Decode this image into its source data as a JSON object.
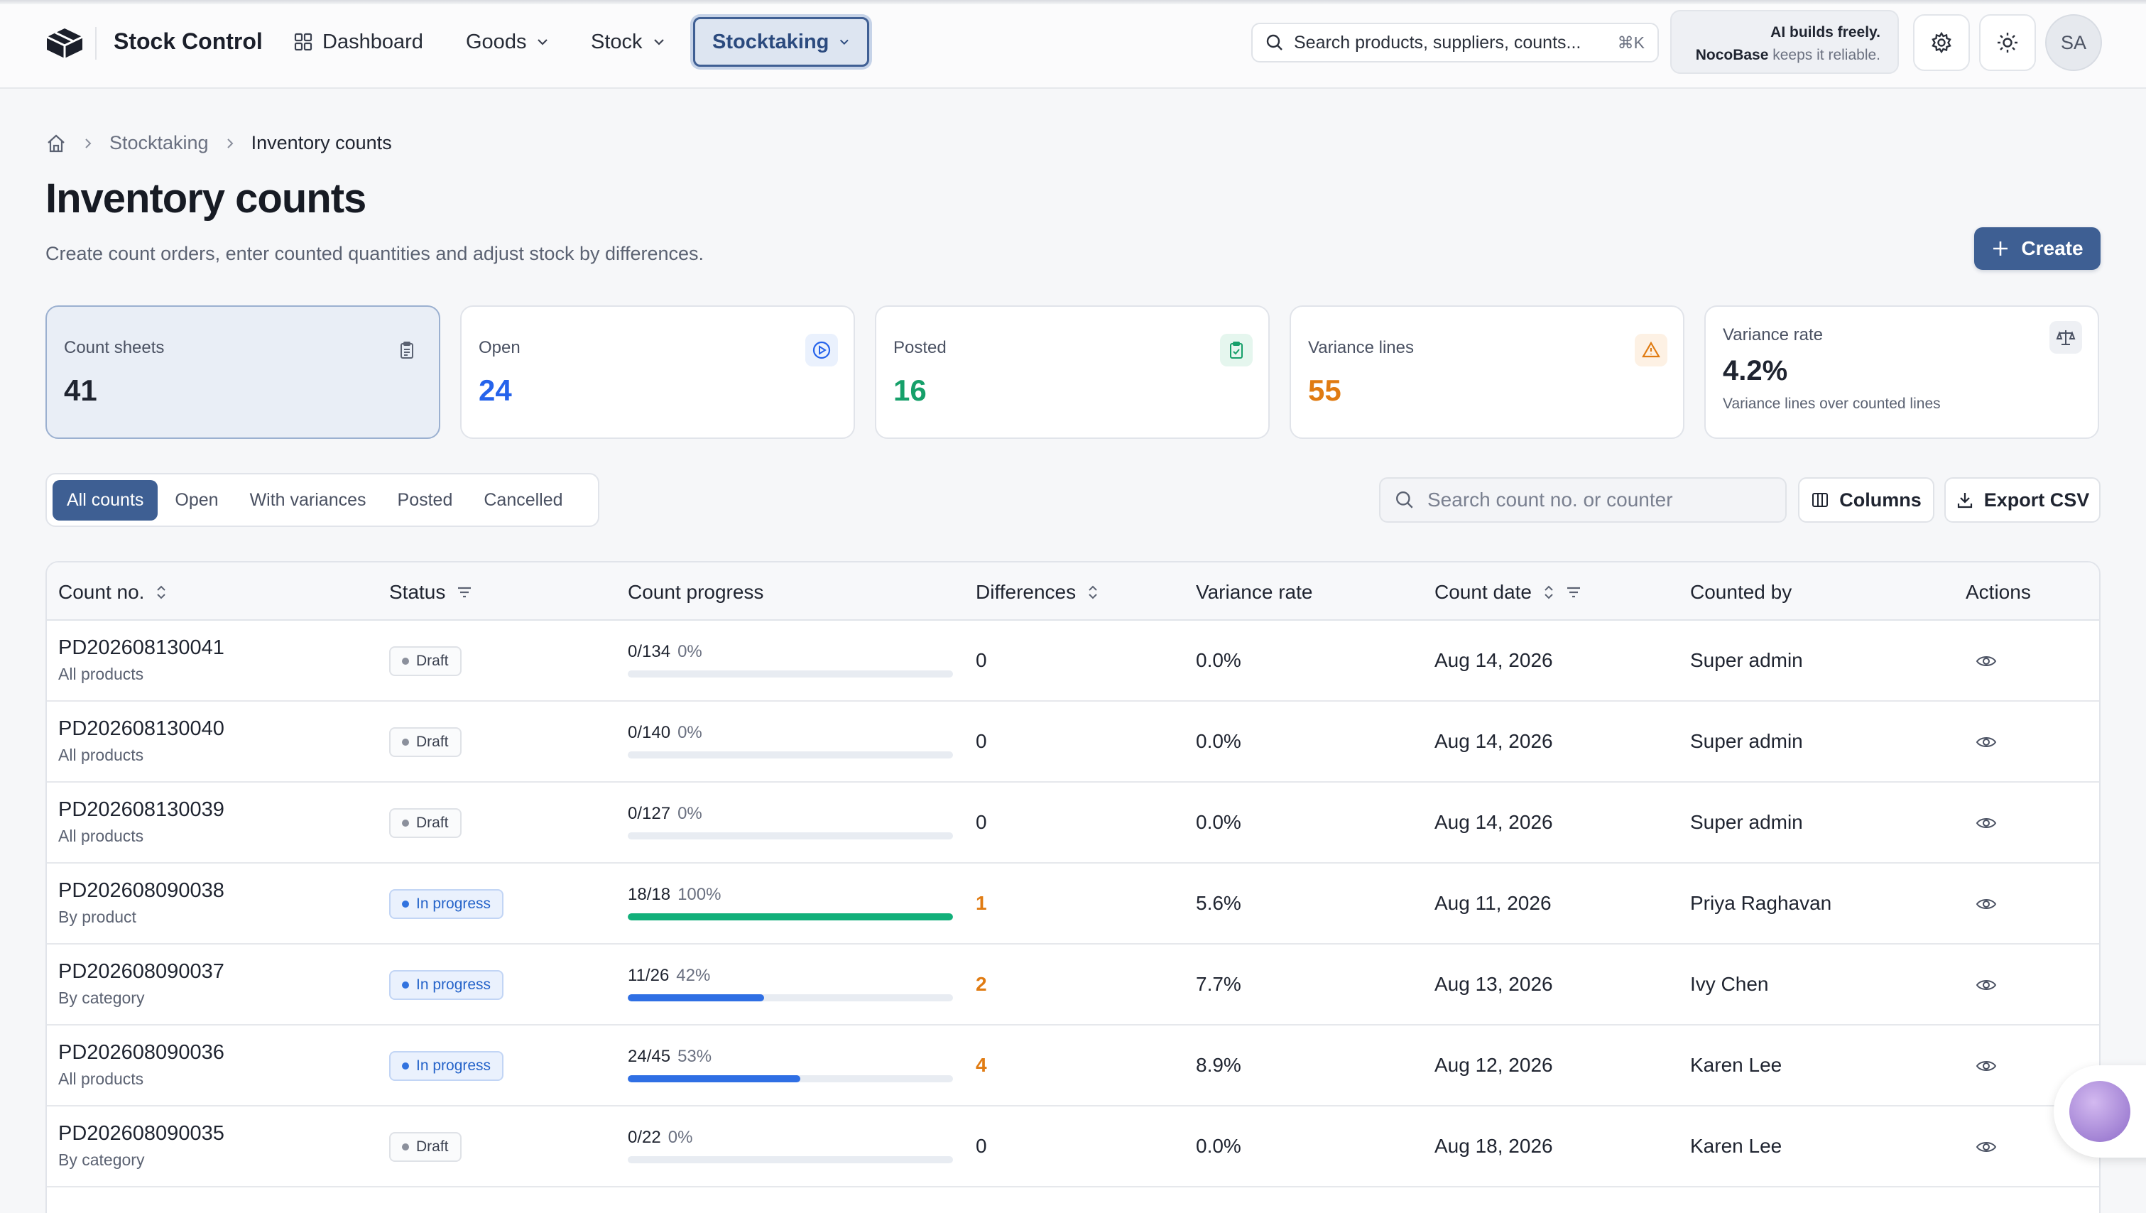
{
  "app": {
    "title": "Stock Control"
  },
  "nav": [
    {
      "label": "Dashboard",
      "icon": "dashboard-icon"
    },
    {
      "label": "Goods",
      "icon": "chevron-down-icon"
    },
    {
      "label": "Stock",
      "icon": "chevron-down-icon"
    },
    {
      "label": "Stocktaking",
      "icon": "chevron-down-icon",
      "active": true
    }
  ],
  "search": {
    "placeholder": "Search products, suppliers, counts...",
    "shortcut": "⌘K"
  },
  "promo": {
    "line1": "AI builds freely.",
    "brand": "NocoBase",
    "line2_rest": "keeps it reliable."
  },
  "user": {
    "initials": "SA"
  },
  "breadcrumb": {
    "section": "Stocktaking",
    "current": "Inventory counts"
  },
  "page": {
    "title": "Inventory counts",
    "subtitle": "Create count orders, enter counted quantities and adjust stock by differences.",
    "create_label": "Create"
  },
  "stats": [
    {
      "label": "Count sheets",
      "value": "41",
      "icon": "clipboard-icon",
      "color": "#1f2430"
    },
    {
      "label": "Open",
      "value": "24",
      "icon": "play-circle-icon",
      "color": "#2563eb"
    },
    {
      "label": "Posted",
      "value": "16",
      "icon": "clipboard-check-icon",
      "color": "#16a06a"
    },
    {
      "label": "Variance lines",
      "value": "55",
      "icon": "alert-triangle-icon",
      "color": "#e07b12"
    },
    {
      "label": "Variance rate",
      "value": "4.2%",
      "note": "Variance lines over counted lines",
      "icon": "scale-icon",
      "color": "#1f2430"
    }
  ],
  "filters": [
    "All counts",
    "Open",
    "With variances",
    "Posted",
    "Cancelled"
  ],
  "table_search": {
    "placeholder": "Search count no. or counter"
  },
  "toolbar": {
    "columns_label": "Columns",
    "export_label": "Export CSV"
  },
  "columns": [
    "Count no.",
    "Status",
    "Count progress",
    "Differences",
    "Variance rate",
    "Count date",
    "Counted by",
    "Actions"
  ],
  "rows": [
    {
      "no": "PD202608130041",
      "scope": "All products",
      "status": "Draft",
      "counted": 0,
      "total": 134,
      "pct": "0%",
      "progress": 0,
      "diff": "0",
      "var": "0.0%",
      "date": "Aug 14, 2026",
      "by": "Super admin"
    },
    {
      "no": "PD202608130040",
      "scope": "All products",
      "status": "Draft",
      "counted": 0,
      "total": 140,
      "pct": "0%",
      "progress": 0,
      "diff": "0",
      "var": "0.0%",
      "date": "Aug 14, 2026",
      "by": "Super admin"
    },
    {
      "no": "PD202608130039",
      "scope": "All products",
      "status": "Draft",
      "counted": 0,
      "total": 127,
      "pct": "0%",
      "progress": 0,
      "diff": "0",
      "var": "0.0%",
      "date": "Aug 14, 2026",
      "by": "Super admin"
    },
    {
      "no": "PD202608090038",
      "scope": "By product",
      "status": "In progress",
      "counted": 18,
      "total": 18,
      "pct": "100%",
      "progress": 1.0,
      "diff": "1",
      "var": "5.6%",
      "date": "Aug 11, 2026",
      "by": "Priya Raghavan"
    },
    {
      "no": "PD202608090037",
      "scope": "By category",
      "status": "In progress",
      "counted": 11,
      "total": 26,
      "pct": "42%",
      "progress": 0.42,
      "diff": "2",
      "var": "7.7%",
      "date": "Aug 13, 2026",
      "by": "Ivy Chen"
    },
    {
      "no": "PD202608090036",
      "scope": "All products",
      "status": "In progress",
      "counted": 24,
      "total": 45,
      "pct": "53%",
      "progress": 0.53,
      "diff": "4",
      "var": "8.9%",
      "date": "Aug 12, 2026",
      "by": "Karen Lee"
    },
    {
      "no": "PD202608090035",
      "scope": "By category",
      "status": "Draft",
      "counted": 0,
      "total": 22,
      "pct": "0%",
      "progress": 0,
      "diff": "0",
      "var": "0.0%",
      "date": "Aug 18, 2026",
      "by": "Karen Lee"
    }
  ],
  "colors": {
    "accent": "#3e5f93",
    "progress_blue": "#2f6fe4",
    "progress_green": "#12b07a",
    "variance_orange": "#e07b12"
  }
}
